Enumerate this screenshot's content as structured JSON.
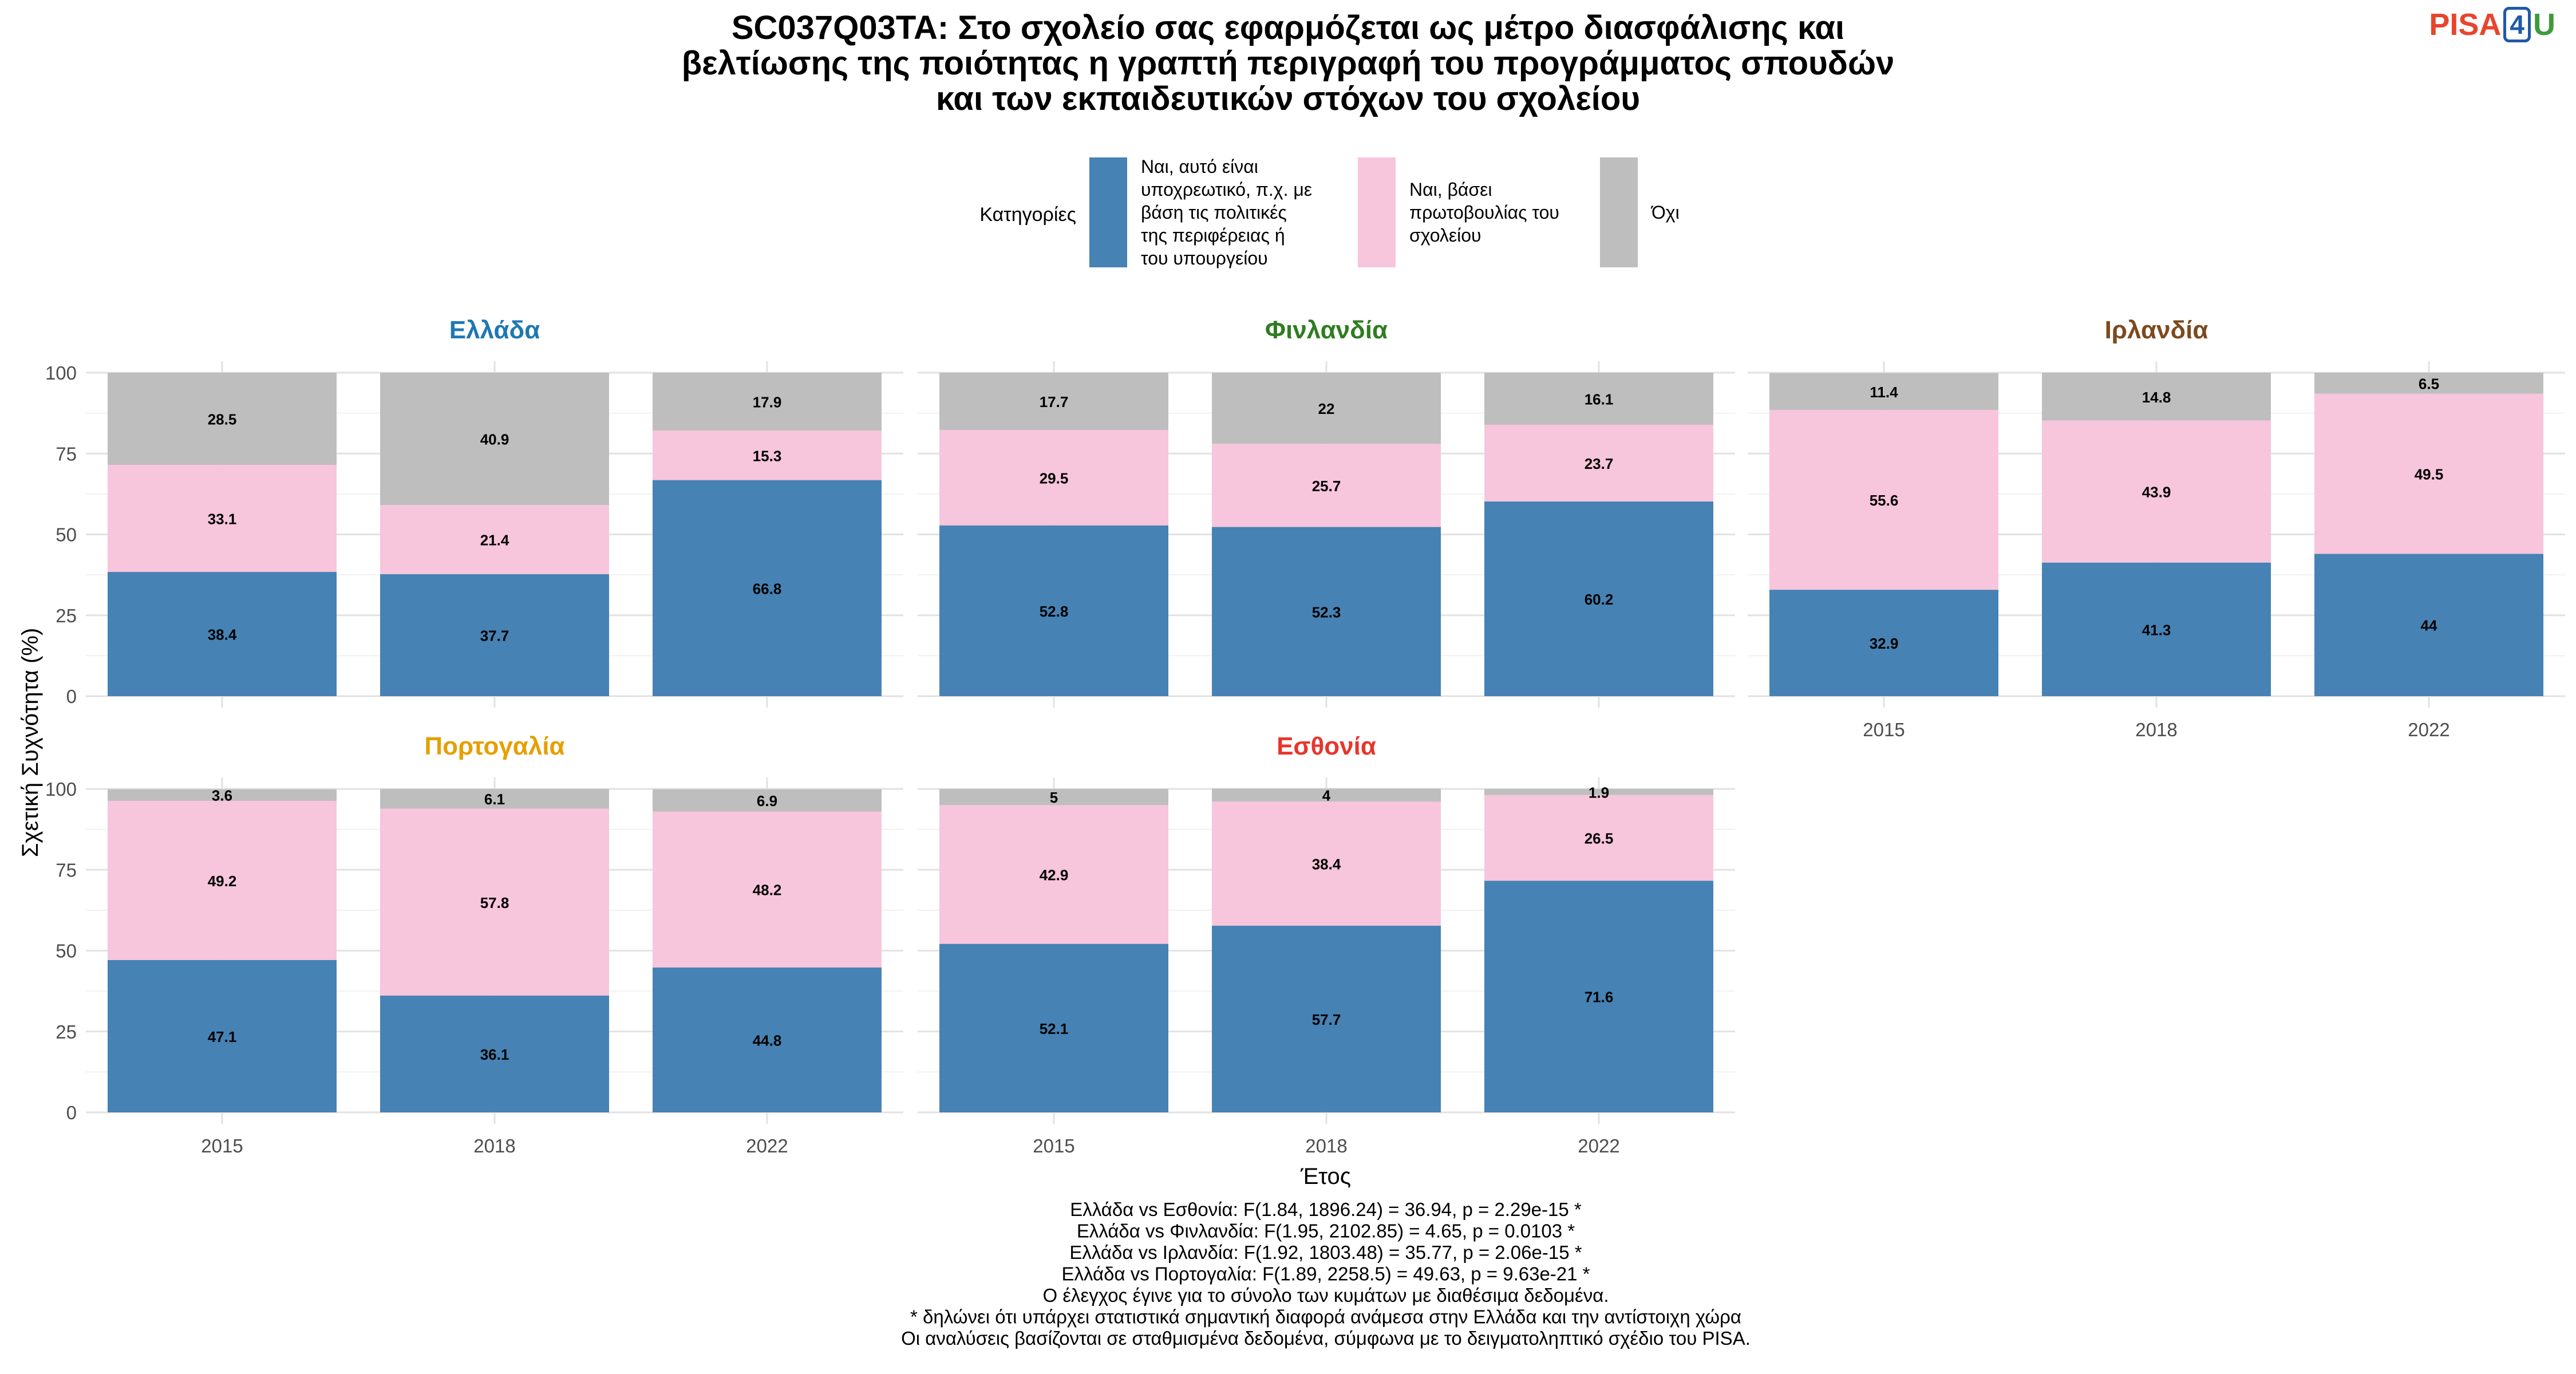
{
  "chart_data": {
    "type": "bar",
    "stacked": true,
    "title_lines": [
      "SC037Q03TA: Στο σχολείο σας εφαρμόζεται ως μέτρο διασφάλισης και",
      "βελτίωσης της ποιότητας η γραπτή περιγραφή του προγράμματος σπουδών",
      "και των εκπαιδευτικών στόχων του σχολείου"
    ],
    "xlabel": "Έτος",
    "ylabel": "Σχετική Συχνότητα (%)",
    "ylim": [
      0,
      100
    ],
    "yticks": [
      0,
      25,
      50,
      75,
      100
    ],
    "categories": [
      "2015",
      "2018",
      "2022"
    ],
    "legend": {
      "title": "Κατηγορίες",
      "position": "top",
      "items": [
        {
          "lines": [
            "Ναι, αυτό είναι",
            "υποχρεωτικό, π.χ. με",
            "βάση τις πολιτικές",
            "της περιφέρειας ή",
            "του υπουργείου"
          ],
          "color": "#4682b4"
        },
        {
          "lines": [
            "Ναι, βάσει",
            "πρωτοβουλίας του",
            "σχολείου"
          ],
          "color": "#f7c5dc"
        },
        {
          "lines": [
            "Όχι"
          ],
          "color": "#bebebe"
        }
      ]
    },
    "series_colors": [
      "#4682b4",
      "#f7c5dc",
      "#bebebe"
    ],
    "panels": [
      {
        "name": "Ελλάδα",
        "color": "#1f77b4",
        "stacks": [
          [
            38.4,
            33.1,
            28.5
          ],
          [
            37.7,
            21.4,
            40.9
          ],
          [
            66.8,
            15.3,
            17.9
          ]
        ],
        "labels": [
          [
            "38.4",
            "33.1",
            "28.5"
          ],
          [
            "37.7",
            "21.4",
            "40.9"
          ],
          [
            "66.8",
            "15.3",
            "17.9"
          ]
        ]
      },
      {
        "name": "Φινλανδία",
        "color": "#2e7d1f",
        "stacks": [
          [
            52.8,
            29.5,
            17.7
          ],
          [
            52.3,
            25.7,
            22
          ],
          [
            60.2,
            23.7,
            16.1
          ]
        ],
        "labels": [
          [
            "52.8",
            "29.5",
            "17.7"
          ],
          [
            "52.3",
            "25.7",
            "22"
          ],
          [
            "60.2",
            "23.7",
            "16.1"
          ]
        ]
      },
      {
        "name": "Ιρλανδία",
        "color": "#7b4a1e",
        "stacks": [
          [
            32.9,
            55.6,
            11.4
          ],
          [
            41.3,
            43.9,
            14.8
          ],
          [
            44,
            49.5,
            6.5
          ]
        ],
        "labels": [
          [
            "32.9",
            "55.6",
            "11.4"
          ],
          [
            "41.3",
            "43.9",
            "14.8"
          ],
          [
            "44",
            "49.5",
            "6.5"
          ]
        ]
      },
      {
        "name": "Πορτογαλία",
        "color": "#e69f00",
        "stacks": [
          [
            47.1,
            49.2,
            3.6
          ],
          [
            36.1,
            57.8,
            6.1
          ],
          [
            44.8,
            48.2,
            6.9
          ]
        ],
        "labels": [
          [
            "47.1",
            "49.2",
            "3.6"
          ],
          [
            "36.1",
            "57.8",
            "6.1"
          ],
          [
            "44.8",
            "48.2",
            "6.9"
          ]
        ]
      },
      {
        "name": "Εσθονία",
        "color": "#e8352b",
        "stacks": [
          [
            52.1,
            42.9,
            5
          ],
          [
            57.7,
            38.4,
            4
          ],
          [
            71.6,
            26.5,
            1.9
          ]
        ],
        "labels": [
          [
            "52.1",
            "42.9",
            "5"
          ],
          [
            "57.7",
            "38.4",
            "4"
          ],
          [
            "71.6",
            "26.5",
            "1.9"
          ]
        ]
      }
    ],
    "footnotes": [
      "Ελλάδα vs Εσθονία: F(1.84, 1896.24) = 36.94, p = 2.29e-15 *",
      "Ελλάδα vs Φινλανδία: F(1.95, 2102.85) = 4.65, p = 0.0103 *",
      "Ελλάδα vs Ιρλανδία: F(1.92, 1803.48) = 35.77, p = 2.06e-15 *",
      "Ελλάδα vs Πορτογαλία: F(1.89, 2258.5) = 49.63, p = 9.63e-21 *",
      "Ο έλεγχος έγινε για το σύνολο των κυμάτων με διαθέσιμα δεδομένα.",
      "* δηλώνει ότι υπάρχει στατιστικά σημαντική διαφορά ανάμεσα στην Ελλάδα και την αντίστοιχη χώρα",
      "Οι αναλύσεις βασίζονται σε σταθμισμένα δεδομένα, σύμφωνα με το δειγματοληπτικό σχέδιο του PISA."
    ]
  },
  "logo": {
    "pisa": "PISA",
    "four": "4",
    "u": "U"
  }
}
